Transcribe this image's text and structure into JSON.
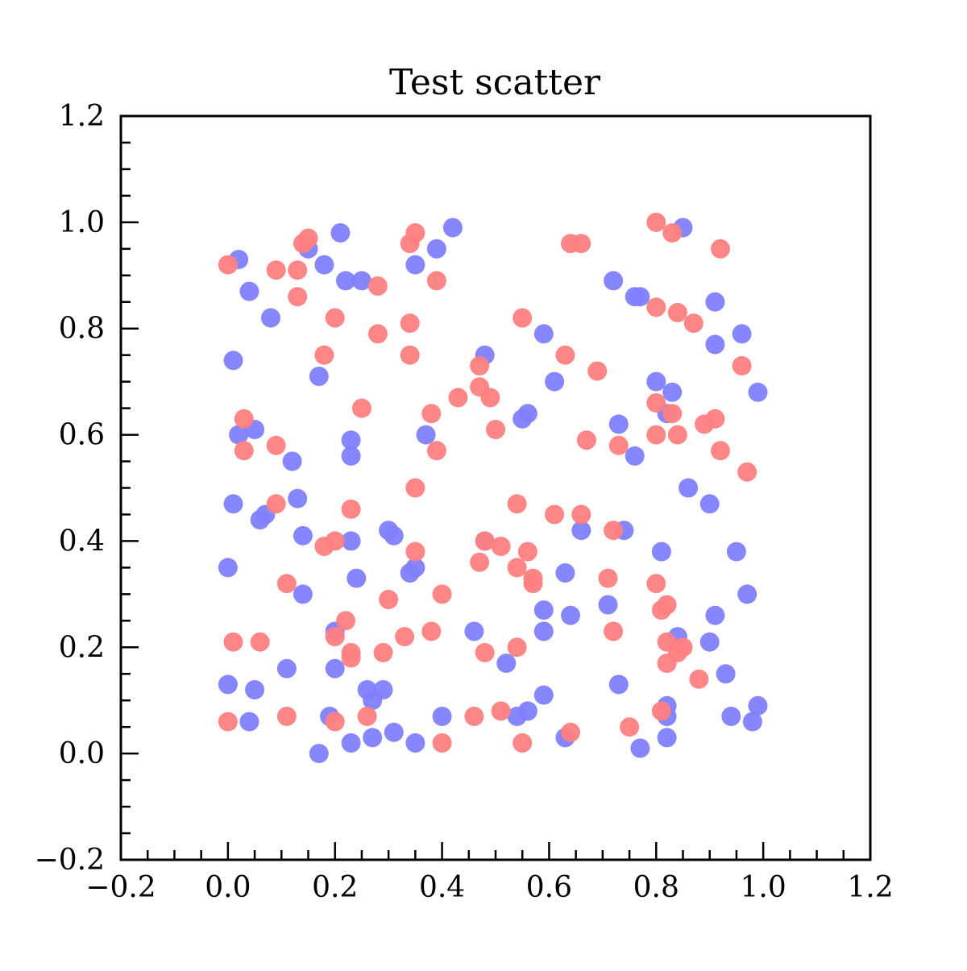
{
  "chart_data": {
    "type": "scatter",
    "title": "Test scatter",
    "xlabel": "",
    "ylabel": "",
    "xlim": [
      -0.2,
      1.2
    ],
    "ylim": [
      -0.2,
      1.2
    ],
    "x_ticks": [
      -0.2,
      0.0,
      0.2,
      0.4,
      0.6,
      0.8,
      1.0,
      1.2
    ],
    "y_ticks": [
      -0.2,
      0.0,
      0.2,
      0.4,
      0.6,
      0.8,
      1.0,
      1.2
    ],
    "x_tick_labels": [
      "−0.2",
      "0.0",
      "0.2",
      "0.4",
      "0.6",
      "0.8",
      "1.0",
      "1.2"
    ],
    "y_tick_labels": [
      "−0.2",
      "0.0",
      "0.2",
      "0.4",
      "0.6",
      "0.8",
      "1.0",
      "1.2"
    ],
    "minor_tick_step": 0.05,
    "grid": false,
    "legend": "none",
    "series": [
      {
        "color": "#7f7fff",
        "points": [
          [
            0.02,
            0.93
          ],
          [
            0.04,
            0.87
          ],
          [
            0.08,
            0.82
          ],
          [
            0.01,
            0.74
          ],
          [
            0.02,
            0.6
          ],
          [
            0.05,
            0.61
          ],
          [
            0.01,
            0.47
          ],
          [
            0.07,
            0.45
          ],
          [
            0.06,
            0.44
          ],
          [
            0.0,
            0.35
          ],
          [
            0.0,
            0.13
          ],
          [
            0.05,
            0.12
          ],
          [
            0.04,
            0.06
          ],
          [
            0.12,
            0.55
          ],
          [
            0.13,
            0.48
          ],
          [
            0.14,
            0.41
          ],
          [
            0.14,
            0.3
          ],
          [
            0.11,
            0.16
          ],
          [
            0.15,
            0.95
          ],
          [
            0.18,
            0.92
          ],
          [
            0.17,
            0.71
          ],
          [
            0.21,
            0.98
          ],
          [
            0.22,
            0.89
          ],
          [
            0.25,
            0.89
          ],
          [
            0.23,
            0.59
          ],
          [
            0.23,
            0.56
          ],
          [
            0.23,
            0.4
          ],
          [
            0.24,
            0.33
          ],
          [
            0.2,
            0.23
          ],
          [
            0.2,
            0.16
          ],
          [
            0.19,
            0.07
          ],
          [
            0.17,
            0.0
          ],
          [
            0.23,
            0.02
          ],
          [
            0.27,
            0.03
          ],
          [
            0.26,
            0.12
          ],
          [
            0.27,
            0.1
          ],
          [
            0.29,
            0.12
          ],
          [
            0.3,
            0.42
          ],
          [
            0.31,
            0.41
          ],
          [
            0.34,
            0.34
          ],
          [
            0.35,
            0.35
          ],
          [
            0.31,
            0.04
          ],
          [
            0.35,
            0.02
          ],
          [
            0.35,
            0.92
          ],
          [
            0.39,
            0.95
          ],
          [
            0.42,
            0.99
          ],
          [
            0.37,
            0.6
          ],
          [
            0.4,
            0.07
          ],
          [
            0.46,
            0.23
          ],
          [
            0.48,
            0.4
          ],
          [
            0.48,
            0.75
          ],
          [
            0.52,
            0.17
          ],
          [
            0.54,
            0.07
          ],
          [
            0.56,
            0.08
          ],
          [
            0.55,
            0.63
          ],
          [
            0.56,
            0.64
          ],
          [
            0.59,
            0.79
          ],
          [
            0.61,
            0.7
          ],
          [
            0.59,
            0.27
          ],
          [
            0.59,
            0.23
          ],
          [
            0.59,
            0.11
          ],
          [
            0.63,
            0.34
          ],
          [
            0.64,
            0.26
          ],
          [
            0.66,
            0.42
          ],
          [
            0.63,
            0.03
          ],
          [
            0.72,
            0.89
          ],
          [
            0.76,
            0.86
          ],
          [
            0.77,
            0.86
          ],
          [
            0.73,
            0.62
          ],
          [
            0.76,
            0.56
          ],
          [
            0.74,
            0.42
          ],
          [
            0.71,
            0.28
          ],
          [
            0.73,
            0.13
          ],
          [
            0.77,
            0.01
          ],
          [
            0.85,
            0.99
          ],
          [
            0.8,
            0.7
          ],
          [
            0.83,
            0.68
          ],
          [
            0.82,
            0.64
          ],
          [
            0.81,
            0.38
          ],
          [
            0.84,
            0.22
          ],
          [
            0.82,
            0.09
          ],
          [
            0.82,
            0.07
          ],
          [
            0.82,
            0.03
          ],
          [
            0.86,
            0.5
          ],
          [
            0.91,
            0.85
          ],
          [
            0.91,
            0.77
          ],
          [
            0.96,
            0.79
          ],
          [
            0.99,
            0.68
          ],
          [
            0.9,
            0.47
          ],
          [
            0.95,
            0.38
          ],
          [
            0.97,
            0.3
          ],
          [
            0.91,
            0.26
          ],
          [
            0.9,
            0.21
          ],
          [
            0.93,
            0.15
          ],
          [
            0.94,
            0.07
          ],
          [
            0.98,
            0.06
          ],
          [
            0.99,
            0.09
          ]
        ]
      },
      {
        "color": "#ff7f7f",
        "points": [
          [
            0.0,
            0.92
          ],
          [
            0.09,
            0.91
          ],
          [
            0.13,
            0.91
          ],
          [
            0.13,
            0.86
          ],
          [
            0.14,
            0.96
          ],
          [
            0.15,
            0.97
          ],
          [
            0.2,
            0.82
          ],
          [
            0.18,
            0.75
          ],
          [
            0.03,
            0.63
          ],
          [
            0.03,
            0.57
          ],
          [
            0.09,
            0.58
          ],
          [
            0.09,
            0.47
          ],
          [
            0.11,
            0.32
          ],
          [
            0.18,
            0.39
          ],
          [
            0.2,
            0.4
          ],
          [
            0.2,
            0.22
          ],
          [
            0.22,
            0.25
          ],
          [
            0.23,
            0.18
          ],
          [
            0.23,
            0.19
          ],
          [
            0.01,
            0.21
          ],
          [
            0.06,
            0.21
          ],
          [
            0.0,
            0.06
          ],
          [
            0.11,
            0.07
          ],
          [
            0.2,
            0.06
          ],
          [
            0.26,
            0.07
          ],
          [
            0.28,
            0.88
          ],
          [
            0.28,
            0.79
          ],
          [
            0.25,
            0.65
          ],
          [
            0.23,
            0.46
          ],
          [
            0.3,
            0.29
          ],
          [
            0.29,
            0.19
          ],
          [
            0.33,
            0.22
          ],
          [
            0.34,
            0.96
          ],
          [
            0.35,
            0.98
          ],
          [
            0.34,
            0.81
          ],
          [
            0.34,
            0.75
          ],
          [
            0.39,
            0.89
          ],
          [
            0.38,
            0.64
          ],
          [
            0.39,
            0.57
          ],
          [
            0.35,
            0.5
          ],
          [
            0.35,
            0.38
          ],
          [
            0.4,
            0.3
          ],
          [
            0.38,
            0.23
          ],
          [
            0.4,
            0.02
          ],
          [
            0.43,
            0.67
          ],
          [
            0.47,
            0.73
          ],
          [
            0.47,
            0.69
          ],
          [
            0.49,
            0.67
          ],
          [
            0.5,
            0.61
          ],
          [
            0.48,
            0.4
          ],
          [
            0.51,
            0.39
          ],
          [
            0.47,
            0.36
          ],
          [
            0.48,
            0.19
          ],
          [
            0.51,
            0.08
          ],
          [
            0.46,
            0.07
          ],
          [
            0.55,
            0.82
          ],
          [
            0.54,
            0.47
          ],
          [
            0.54,
            0.35
          ],
          [
            0.56,
            0.38
          ],
          [
            0.57,
            0.33
          ],
          [
            0.57,
            0.32
          ],
          [
            0.54,
            0.2
          ],
          [
            0.55,
            0.02
          ],
          [
            0.64,
            0.96
          ],
          [
            0.66,
            0.96
          ],
          [
            0.63,
            0.75
          ],
          [
            0.69,
            0.72
          ],
          [
            0.67,
            0.59
          ],
          [
            0.61,
            0.45
          ],
          [
            0.66,
            0.45
          ],
          [
            0.64,
            0.04
          ],
          [
            0.71,
            0.33
          ],
          [
            0.72,
            0.23
          ],
          [
            0.72,
            0.42
          ],
          [
            0.73,
            0.58
          ],
          [
            0.75,
            0.05
          ],
          [
            0.8,
            1.0
          ],
          [
            0.83,
            0.98
          ],
          [
            0.8,
            0.84
          ],
          [
            0.84,
            0.83
          ],
          [
            0.87,
            0.81
          ],
          [
            0.8,
            0.66
          ],
          [
            0.8,
            0.6
          ],
          [
            0.83,
            0.64
          ],
          [
            0.84,
            0.6
          ],
          [
            0.8,
            0.32
          ],
          [
            0.81,
            0.27
          ],
          [
            0.82,
            0.28
          ],
          [
            0.82,
            0.21
          ],
          [
            0.82,
            0.17
          ],
          [
            0.84,
            0.19
          ],
          [
            0.85,
            0.2
          ],
          [
            0.81,
            0.08
          ],
          [
            0.88,
            0.14
          ],
          [
            0.92,
            0.95
          ],
          [
            0.96,
            0.73
          ],
          [
            0.89,
            0.62
          ],
          [
            0.91,
            0.63
          ],
          [
            0.92,
            0.57
          ],
          [
            0.97,
            0.53
          ]
        ]
      }
    ]
  }
}
